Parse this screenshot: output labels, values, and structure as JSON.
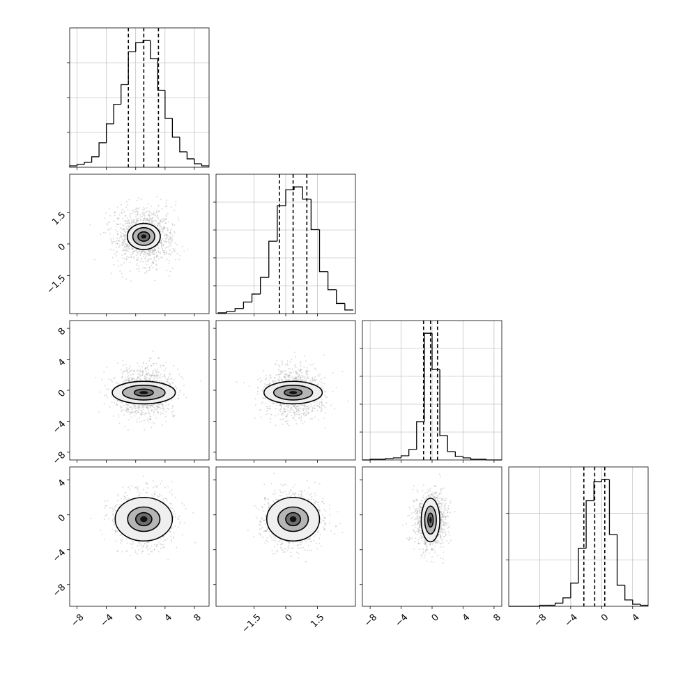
{
  "figure": {
    "kind": "corner plot",
    "background": "#ffffff",
    "grid": true,
    "grid_color": "#b0b0b0",
    "line_color": "#000000",
    "scatter_color": "#9a9a9a",
    "quantile_line_style": "dashed"
  },
  "chart_data": [
    {
      "type": "bar",
      "panel": "hist-1",
      "x_range": [
        -9,
        10
      ],
      "x": [
        -8.5,
        -7.5,
        -6.5,
        -5.5,
        -4.5,
        -3.5,
        -2.5,
        -1.5,
        -0.5,
        0.5,
        1.5,
        2.5,
        3.5,
        4.5,
        5.5,
        6.5,
        7.5,
        8.5,
        9.5
      ],
      "values": [
        2,
        4,
        7,
        15,
        35,
        62,
        90,
        118,
        165,
        178,
        181,
        155,
        110,
        70,
        43,
        22,
        12,
        5,
        2
      ],
      "quantiles": [
        -1.0,
        1.1,
        3.1
      ],
      "xticks": [
        -8,
        -4,
        0,
        4,
        8
      ],
      "ytick_count": 3
    },
    {
      "type": "bar",
      "panel": "hist-2",
      "x_range": [
        -3.3,
        3.3
      ],
      "x": [
        -3.0,
        -2.6,
        -2.2,
        -1.8,
        -1.4,
        -1.0,
        -0.6,
        -0.2,
        0.2,
        0.6,
        1.0,
        1.4,
        1.8,
        2.2,
        2.6,
        3.0
      ],
      "values": [
        1,
        3,
        7,
        16,
        27,
        50,
        100,
        149,
        171,
        175,
        158,
        116,
        58,
        33,
        14,
        5
      ],
      "quantiles": [
        -0.3,
        0.35,
        1.0
      ],
      "xticks": [
        -1.5,
        0.0,
        1.5
      ],
      "ytick_count": 4
    },
    {
      "type": "bar",
      "panel": "hist-3",
      "x_range": [
        -9,
        9
      ],
      "x": [
        -8.5,
        -7.5,
        -6.5,
        -5.5,
        -4.5,
        -3.5,
        -2.5,
        -1.5,
        -0.5,
        0.5,
        1.5,
        2.5,
        3.5,
        4.5,
        5.5,
        6.5,
        7.5,
        8.5
      ],
      "values": [
        0,
        1,
        1,
        2,
        3,
        6,
        15,
        55,
        182,
        130,
        35,
        12,
        5,
        3,
        1,
        1,
        0,
        0
      ],
      "quantiles": [
        -1.1,
        -0.2,
        0.7
      ],
      "xticks": [
        -8,
        -4,
        0,
        4,
        8
      ],
      "ytick_count": 4
    },
    {
      "type": "bar",
      "panel": "hist-4",
      "x_range": [
        -12,
        6
      ],
      "x": [
        -11.5,
        -10.5,
        -9.5,
        -8.5,
        -7.5,
        -6.5,
        -5.5,
        -4.5,
        -3.5,
        -2.5,
        -1.5,
        -0.5,
        0.5,
        1.5,
        2.5,
        3.5,
        4.5,
        5.5
      ],
      "values": [
        0,
        0,
        0,
        0,
        1,
        1,
        3,
        8,
        22,
        55,
        100,
        118,
        120,
        68,
        20,
        6,
        2,
        1
      ],
      "quantiles": [
        -2.3,
        -0.9,
        0.4
      ],
      "xticks": [
        -8,
        -4,
        0,
        4
      ],
      "ytick_count": 2
    },
    {
      "type": "scatter",
      "panel": "pair-2-1",
      "x_range": [
        -9,
        10
      ],
      "y_range": [
        -3.3,
        3.3
      ],
      "center": [
        1.1,
        0.35
      ],
      "sigma": [
        2.1,
        0.68
      ],
      "sample_count": 1100,
      "contour_levels": [
        [
          0.8,
          0.22
        ],
        [
          1.5,
          0.42
        ],
        [
          2.25,
          0.62
        ]
      ],
      "yticks": [
        -1.5,
        0.0,
        1.5
      ]
    },
    {
      "type": "scatter",
      "panel": "pair-3-1",
      "x_range": [
        -9,
        10
      ],
      "y_range": [
        -9,
        9
      ],
      "center": [
        1.1,
        -0.3
      ],
      "sigma": [
        2.1,
        1.6
      ],
      "sample_count": 1100,
      "contour_levels": [
        [
          1.3,
          0.45
        ],
        [
          2.9,
          0.95
        ],
        [
          4.3,
          1.45
        ]
      ],
      "yticks": [
        -8,
        -4,
        0,
        4,
        8
      ]
    },
    {
      "type": "scatter",
      "panel": "pair-3-2",
      "x_range": [
        -3.3,
        3.3
      ],
      "y_range": [
        -9,
        9
      ],
      "center": [
        0.35,
        -0.3
      ],
      "sigma": [
        0.68,
        1.6
      ],
      "sample_count": 1100,
      "contour_levels": [
        [
          0.42,
          0.45
        ],
        [
          0.92,
          0.95
        ],
        [
          1.38,
          1.45
        ]
      ]
    },
    {
      "type": "scatter",
      "panel": "pair-4-1",
      "x_range": [
        -9,
        10
      ],
      "y_range": [
        -10.5,
        5.5
      ],
      "center": [
        1.1,
        -0.5
      ],
      "sigma": [
        2.1,
        1.6
      ],
      "sample_count": 1100,
      "contour_levels": [
        [
          1.1,
          0.75
        ],
        [
          2.2,
          1.4
        ],
        [
          3.9,
          2.5
        ]
      ],
      "yticks": [
        -8,
        -4,
        0,
        4
      ],
      "xticks": [
        -8,
        -4,
        0,
        4,
        8
      ]
    },
    {
      "type": "scatter",
      "panel": "pair-4-2",
      "x_range": [
        -3.3,
        3.3
      ],
      "y_range": [
        -10.5,
        5.5
      ],
      "center": [
        0.35,
        -0.5
      ],
      "sigma": [
        0.68,
        1.6
      ],
      "sample_count": 1100,
      "contour_levels": [
        [
          0.35,
          0.75
        ],
        [
          0.72,
          1.4
        ],
        [
          1.25,
          2.5
        ]
      ],
      "xticks": [
        -1.5,
        0.0,
        1.5
      ]
    },
    {
      "type": "scatter",
      "panel": "pair-4-3",
      "x_range": [
        -9,
        9
      ],
      "y_range": [
        -10.5,
        5.5
      ],
      "center": [
        -0.2,
        -0.6
      ],
      "sigma": [
        1.0,
        1.6
      ],
      "sample_count": 1100,
      "contour_levels": [
        [
          0.35,
          0.8
        ],
        [
          0.75,
          1.6
        ],
        [
          1.2,
          2.5
        ]
      ],
      "xticks": [
        -8,
        -4,
        0,
        4,
        8
      ]
    }
  ]
}
